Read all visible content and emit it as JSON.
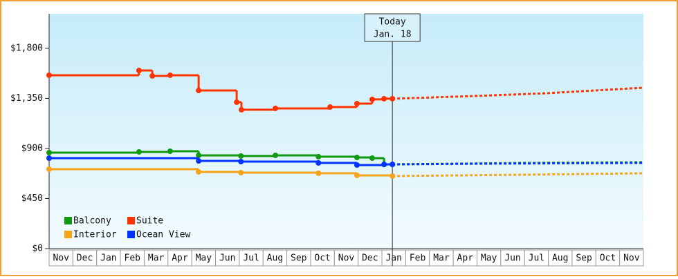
{
  "chart_data": {
    "type": "step-line",
    "categories": [
      "Nov",
      "Dec",
      "Jan",
      "Feb",
      "Mar",
      "Apr",
      "May",
      "Jun",
      "Jul",
      "Aug",
      "Sep",
      "Oct",
      "Nov",
      "Dec",
      "Jan",
      "Feb",
      "Mar",
      "Apr",
      "May",
      "Jun",
      "Jul",
      "Aug",
      "Sep",
      "Oct",
      "Nov"
    ],
    "xlim": [
      0,
      25
    ],
    "ylim": [
      0,
      2110
    ],
    "yticks": [
      {
        "value": 0,
        "label": "$0"
      },
      {
        "value": 450,
        "label": "$450"
      },
      {
        "value": 900,
        "label": "$900"
      },
      {
        "value": 1350,
        "label": "$1,350"
      },
      {
        "value": 1800,
        "label": "$1,800"
      }
    ],
    "annotation": {
      "text": [
        "Today",
        "Jan. 18"
      ],
      "x": 14.44
    },
    "legend": "lower-left",
    "series": [
      {
        "name": "Balcony",
        "color": "#119911",
        "x": [
          0,
          3.78,
          5.09,
          6.29,
          8.07,
          9.52,
          11.33,
          12.95,
          13.59,
          14.09,
          14.44
        ],
        "values": [
          863,
          869,
          875,
          838,
          832,
          838,
          826,
          819,
          813,
          757,
          757
        ],
        "forecast_x": [
          14.44,
          20,
          25
        ],
        "forecast_values": [
          757,
          770,
          776
        ]
      },
      {
        "name": "Suite",
        "color": "#ff3300",
        "x": [
          0,
          3.78,
          4.34,
          5.09,
          6.29,
          7.89,
          8.09,
          9.52,
          11.82,
          12.95,
          13.59,
          14.09,
          14.44
        ],
        "values": [
          1558,
          1601,
          1552,
          1558,
          1421,
          1316,
          1248,
          1260,
          1272,
          1303,
          1341,
          1347,
          1347
        ],
        "forecast_x": [
          14.44,
          18,
          21,
          25
        ],
        "forecast_values": [
          1347,
          1372,
          1397,
          1446
        ]
      },
      {
        "name": "Interior",
        "color": "#f5a318",
        "x": [
          0,
          6.29,
          8.07,
          11.33,
          12.95,
          14.44
        ],
        "values": [
          714,
          689,
          683,
          677,
          658,
          652
        ],
        "forecast_x": [
          14.44,
          20,
          25
        ],
        "forecast_values": [
          652,
          664,
          677
        ]
      },
      {
        "name": "Ocean View",
        "color": "#0033ff",
        "x": [
          0,
          6.29,
          8.07,
          11.33,
          12.95,
          14.09,
          14.44
        ],
        "values": [
          813,
          788,
          782,
          770,
          751,
          757,
          757
        ],
        "forecast_x": [
          14.44,
          18,
          25
        ],
        "forecast_values": [
          757,
          763,
          770
        ]
      }
    ]
  }
}
